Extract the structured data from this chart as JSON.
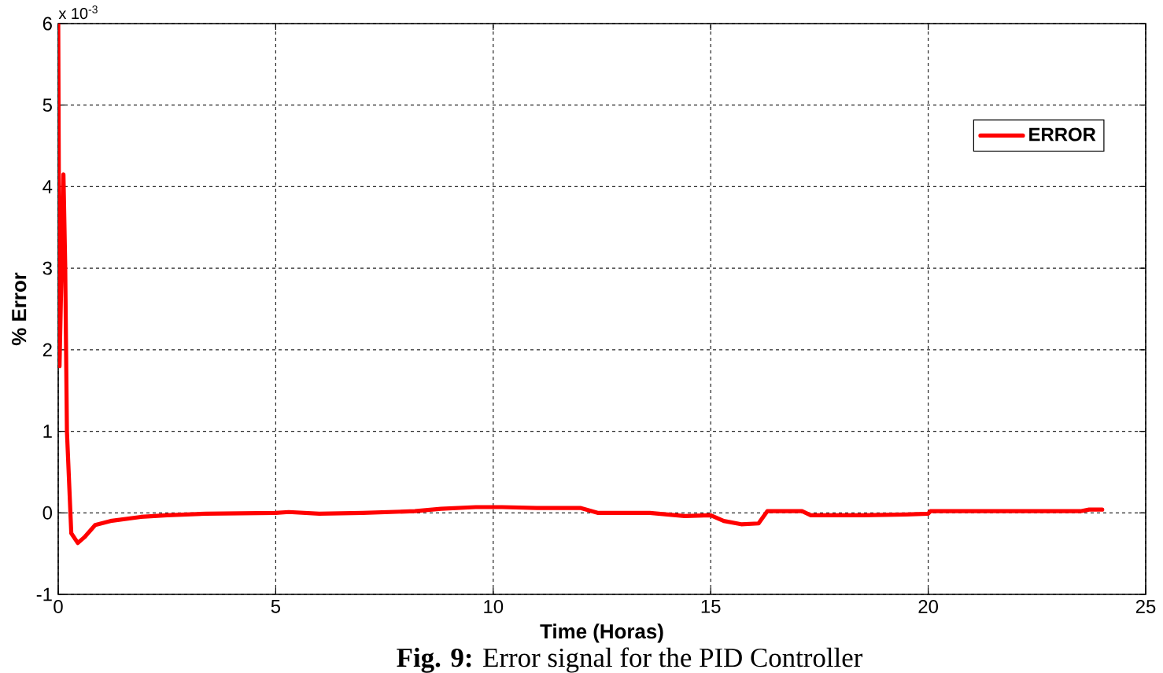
{
  "chart_data": {
    "type": "line",
    "xlabel": "Time (Horas)",
    "ylabel": "% Error",
    "annotations": [
      "x 10$^{-3}$",
      "**Fig. 9:** Error signal for the PID Controller"
    ],
    "x": [
      0,
      0.03,
      0.12,
      0.16,
      0.2,
      0.3,
      0.45,
      0.6,
      0.85,
      1.2,
      1.9,
      2.5,
      3.4,
      5,
      5.3,
      6,
      7,
      8.2,
      8.8,
      9.6,
      10.2,
      11,
      12,
      12.4,
      13,
      13.6,
      14.4,
      15.0,
      15.3,
      15.7,
      16.1,
      16.3,
      17.1,
      17.3,
      18.5,
      19.5,
      20.0,
      20.05,
      22,
      23.5,
      23.7,
      24.0
    ],
    "series": [
      {
        "name": "ERROR",
        "color": "#ff0000",
        "values": [
          6,
          1.8,
          4.15,
          3.05,
          1.0,
          -0.25,
          -0.37,
          -0.3,
          -0.15,
          -0.1,
          -0.05,
          -0.03,
          -0.01,
          0.0,
          0.01,
          -0.01,
          0.0,
          0.02,
          0.05,
          0.07,
          0.07,
          0.06,
          0.06,
          0.0,
          0.0,
          0.0,
          -0.04,
          -0.03,
          -0.1,
          -0.14,
          -0.13,
          0.02,
          0.02,
          -0.03,
          -0.03,
          -0.02,
          -0.01,
          0.02,
          0.02,
          0.02,
          0.04,
          0.04
        ]
      }
    ],
    "xlim": [
      0,
      25
    ],
    "ylim": [
      -1,
      6
    ],
    "xticks": [
      0,
      5,
      10,
      15,
      20,
      25
    ],
    "yticks": [
      -1,
      0,
      1,
      2,
      3,
      4,
      5,
      6
    ],
    "grid": true,
    "legend": "top right"
  }
}
